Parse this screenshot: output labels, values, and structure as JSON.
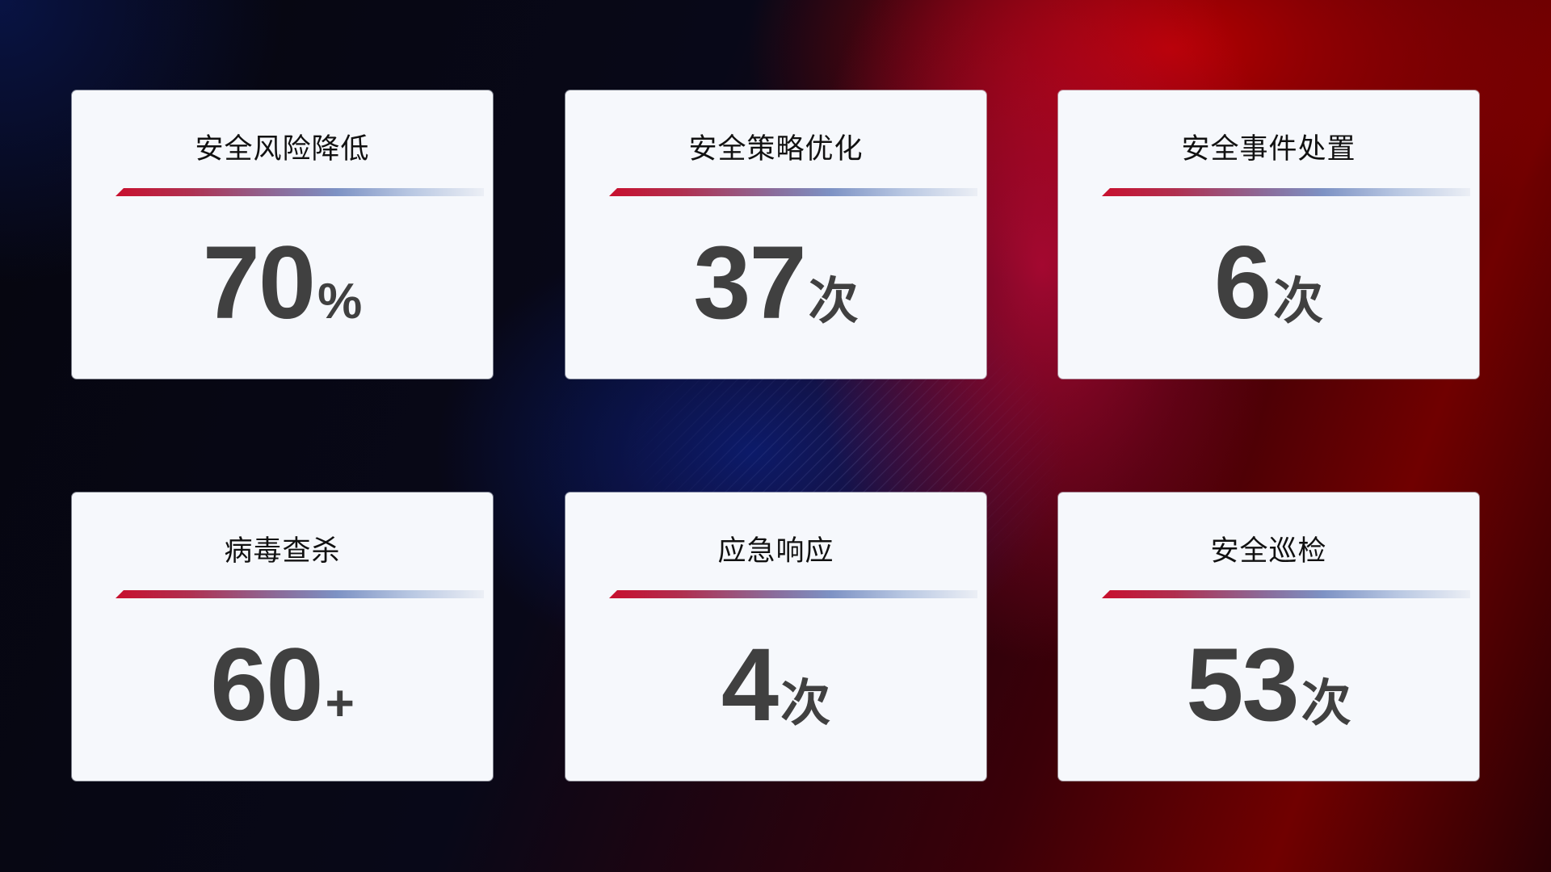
{
  "colors": {
    "accent_red": "#c8102e",
    "accent_blue": "#7d92c4",
    "card_bg": "#f6f8fc",
    "value_text": "#404040"
  },
  "cards": [
    {
      "title": "安全风险降低",
      "value": "70",
      "unit": "%"
    },
    {
      "title": "安全策略优化",
      "value": "37",
      "unit": "次"
    },
    {
      "title": "安全事件处置",
      "value": "6",
      "unit": "次"
    },
    {
      "title": "病毒查杀",
      "value": "60",
      "unit": "+"
    },
    {
      "title": "应急响应",
      "value": "4",
      "unit": "次"
    },
    {
      "title": "安全巡检",
      "value": "53",
      "unit": "次"
    }
  ]
}
